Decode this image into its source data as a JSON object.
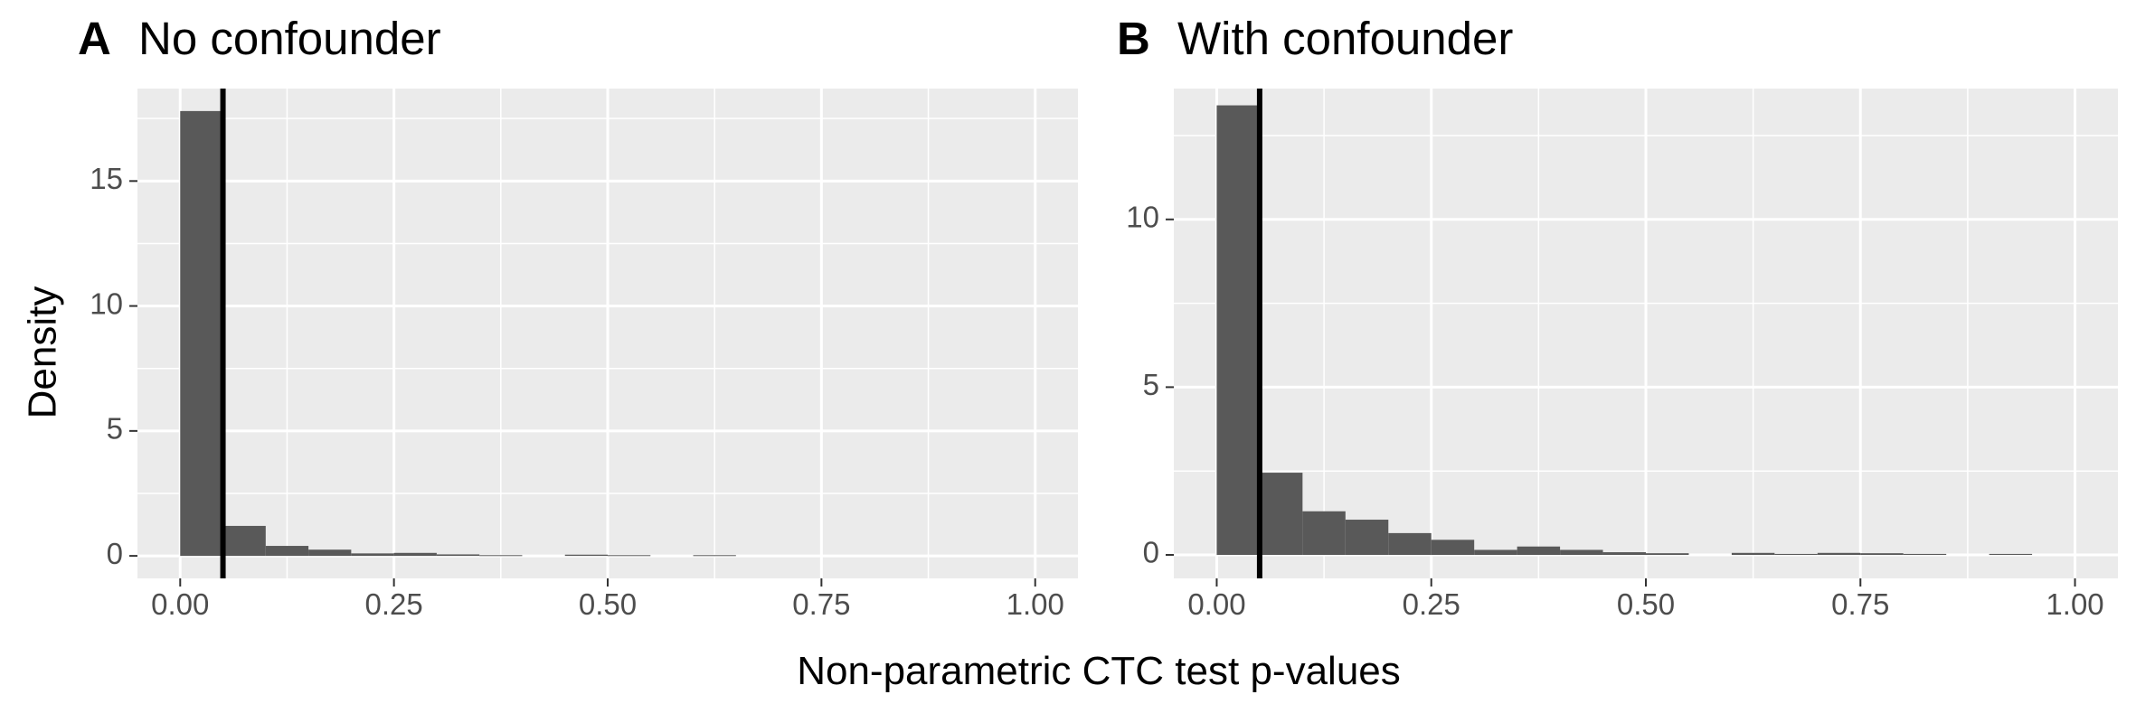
{
  "chart_data": [
    {
      "type": "bar",
      "panel_letter": "A",
      "title": "No confounder",
      "xlabel": "Non-parametric CTC test p-values",
      "ylabel": "Density",
      "xlim": [
        -0.05,
        1.05
      ],
      "ylim": [
        -0.9,
        18.7
      ],
      "x_ticks": [
        0,
        0.25,
        0.5,
        0.75,
        1
      ],
      "x_tick_labels": [
        "0.00",
        "0.25",
        "0.50",
        "0.75",
        "1.00"
      ],
      "y_ticks": [
        0,
        5,
        10,
        15
      ],
      "y_tick_labels": [
        "0",
        "5",
        "10",
        "15"
      ],
      "bin_width": 0.05,
      "bins_start": [
        0,
        0.05,
        0.1,
        0.15,
        0.2,
        0.25,
        0.3,
        0.35,
        0.4,
        0.45,
        0.5,
        0.55,
        0.6,
        0.65,
        0.7,
        0.75,
        0.8,
        0.85,
        0.9,
        0.95
      ],
      "values": [
        17.8,
        1.2,
        0.4,
        0.25,
        0.1,
        0.12,
        0.06,
        0.03,
        0.0,
        0.05,
        0.03,
        0.0,
        0.03,
        0.0,
        0.0,
        0.0,
        0.0,
        0.0,
        0.0,
        0.0
      ],
      "vline_x": 0.05,
      "grid": true,
      "bar_color": "#595959",
      "panel_background": "#ebebeb",
      "vline_color": "#000000"
    },
    {
      "type": "bar",
      "panel_letter": "B",
      "title": "With confounder",
      "xlabel": "Non-parametric CTC test p-values",
      "ylabel": "",
      "xlim": [
        -0.05,
        1.05
      ],
      "ylim": [
        -0.7,
        13.9
      ],
      "x_ticks": [
        0,
        0.25,
        0.5,
        0.75,
        1
      ],
      "x_tick_labels": [
        "0.00",
        "0.25",
        "0.50",
        "0.75",
        "1.00"
      ],
      "y_ticks": [
        0,
        5,
        10
      ],
      "y_tick_labels": [
        "0",
        "5",
        "10"
      ],
      "bin_width": 0.05,
      "bins_start": [
        0,
        0.05,
        0.1,
        0.15,
        0.2,
        0.25,
        0.3,
        0.35,
        0.4,
        0.45,
        0.5,
        0.55,
        0.6,
        0.65,
        0.7,
        0.75,
        0.8,
        0.85,
        0.9,
        0.95
      ],
      "values": [
        13.4,
        2.45,
        1.3,
        1.05,
        0.65,
        0.45,
        0.15,
        0.25,
        0.15,
        0.08,
        0.05,
        0.0,
        0.06,
        0.03,
        0.06,
        0.05,
        0.03,
        0.0,
        0.03,
        0.0
      ],
      "vline_x": 0.05,
      "grid": true,
      "bar_color": "#595959",
      "panel_background": "#ebebeb",
      "vline_color": "#000000"
    }
  ]
}
